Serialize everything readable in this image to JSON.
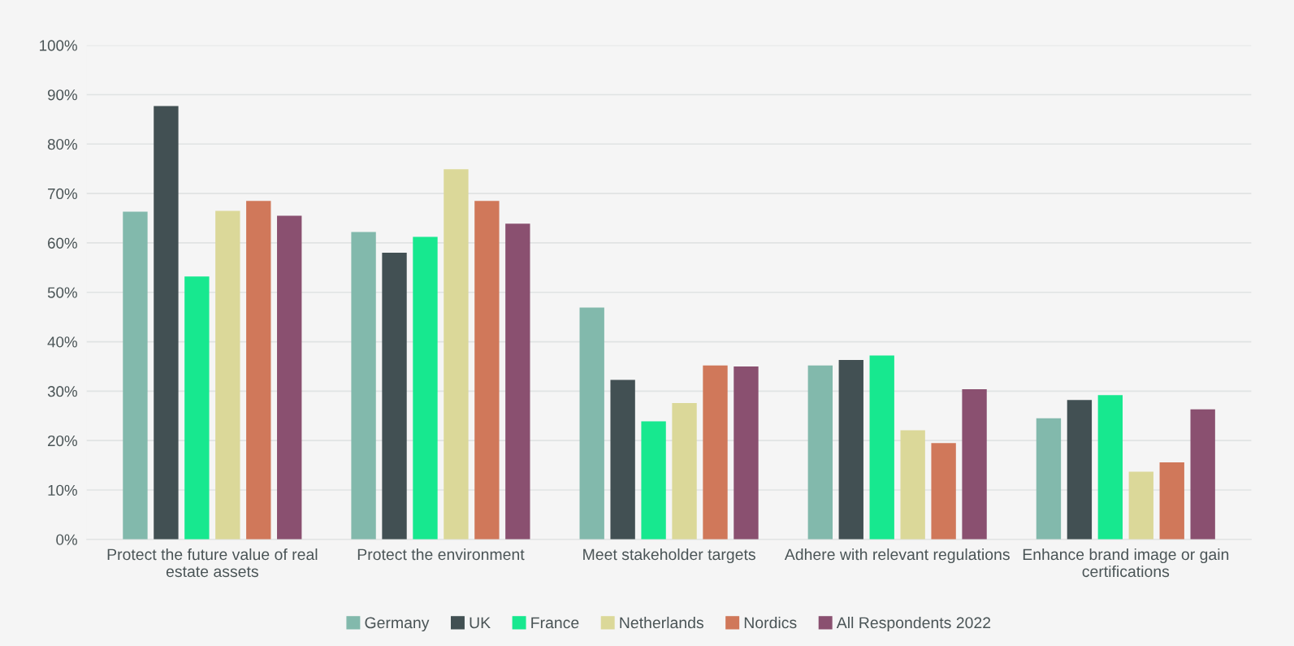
{
  "chart_data": {
    "type": "bar",
    "categories": [
      "Protect the future value of real estate assets",
      "Protect the environment",
      "Meet stakeholder targets",
      "Adhere with relevant regulations",
      "Enhance brand image or gain certifications"
    ],
    "series": [
      {
        "name": "Germany",
        "color": "#82b9ac",
        "values": [
          66.3,
          62.2,
          46.9,
          35.2,
          24.5
        ]
      },
      {
        "name": "UK",
        "color": "#425053",
        "values": [
          87.7,
          58.0,
          32.3,
          36.3,
          28.2
        ]
      },
      {
        "name": "France",
        "color": "#17e88f",
        "values": [
          53.2,
          61.2,
          23.9,
          37.2,
          29.2
        ]
      },
      {
        "name": "Netherlands",
        "color": "#dbd899",
        "values": [
          66.5,
          74.9,
          27.6,
          22.1,
          13.7
        ]
      },
      {
        "name": "Nordics",
        "color": "#d0785a",
        "values": [
          68.5,
          68.5,
          35.2,
          19.5,
          15.6
        ]
      },
      {
        "name": "All Respondents 2022",
        "color": "#8a5070",
        "values": [
          65.5,
          63.9,
          35.0,
          30.4,
          26.3
        ]
      }
    ],
    "ylim": [
      0,
      100
    ],
    "yticks": [
      {
        "value": 0,
        "label": "0%"
      },
      {
        "value": 10,
        "label": "10%"
      },
      {
        "value": 20,
        "label": "20%"
      },
      {
        "value": 30,
        "label": "30%"
      },
      {
        "value": 40,
        "label": "40%"
      },
      {
        "value": 50,
        "label": "50%"
      },
      {
        "value": 60,
        "label": "60%"
      },
      {
        "value": 70,
        "label": "70%"
      },
      {
        "value": 80,
        "label": "80%"
      },
      {
        "value": 90,
        "label": "90%"
      },
      {
        "value": 100,
        "label": "100%"
      }
    ],
    "grid": "y",
    "legend": "bottom"
  }
}
